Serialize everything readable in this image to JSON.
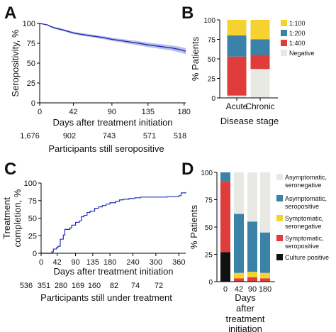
{
  "colors": {
    "blue": "#1f2fb5",
    "ci_band": "#a9afe6",
    "red": "#e03c3c",
    "steel": "#3a82a8",
    "yellow": "#f6d230",
    "gray": "#e9e9e4",
    "black": "#111111"
  },
  "chart_data": [
    {
      "panel": "A",
      "type": "line",
      "xlabel": "Days after treatment initiation",
      "ylabel": "Seropositivity, %",
      "xlim": [
        0,
        182
      ],
      "ylim": [
        0,
        100
      ],
      "xticks": [
        0,
        42,
        90,
        135,
        180
      ],
      "yticks": [
        0,
        25,
        50,
        75,
        100
      ],
      "series": [
        {
          "x": [
            0,
            5,
            10,
            14,
            20,
            28,
            35,
            42,
            50,
            60,
            70,
            80,
            90,
            100,
            110,
            120,
            135,
            150,
            165,
            175,
            180,
            182
          ],
          "y": [
            100,
            99,
            98,
            96,
            94,
            92,
            90,
            88,
            86.5,
            85,
            83.5,
            82,
            80,
            78.5,
            77,
            75.5,
            73,
            71,
            69,
            67,
            65.5,
            65
          ],
          "ci_halfwidth": [
            0,
            0.5,
            0.8,
            1,
            1.2,
            1.3,
            1.4,
            1.5,
            1.6,
            1.7,
            1.8,
            1.9,
            2.0,
            2.2,
            2.4,
            2.6,
            2.8,
            3.0,
            3.3,
            3.6,
            3.8,
            4.0
          ]
        }
      ],
      "risk_table": {
        "label": "Participants still seropositive",
        "values": [
          "1,676",
          "902",
          "743",
          "571",
          "518"
        ]
      }
    },
    {
      "panel": "B",
      "type": "bar",
      "stacked": true,
      "xlabel": "Disease stage",
      "ylabel": "% Patients",
      "ylim": [
        0,
        100
      ],
      "yticks": [
        0,
        25,
        50,
        75,
        100
      ],
      "categories": [
        "Acute",
        "Chronic"
      ],
      "legend_position": "top-right",
      "series": [
        {
          "name": "1:100",
          "values": [
            20,
            25
          ],
          "color": "#f6d230"
        },
        {
          "name": "1:200",
          "values": [
            27,
            20
          ],
          "color": "#3a82a8"
        },
        {
          "name": "1:400",
          "values": [
            50,
            18
          ],
          "color": "#e03c3c"
        },
        {
          "name": "Negative",
          "values": [
            3,
            37
          ],
          "color": "#e9e9e4"
        }
      ]
    },
    {
      "panel": "C",
      "type": "line",
      "xlabel": "Days after treatment initiation",
      "ylabel_lines": [
        "Treatment",
        "completion, %"
      ],
      "xlim": [
        0,
        378
      ],
      "ylim": [
        0,
        100
      ],
      "xticks": [
        0,
        42,
        90,
        135,
        180,
        240,
        300,
        360
      ],
      "yticks": [
        0,
        25,
        50,
        75,
        100
      ],
      "series": [
        {
          "x": [
            0,
            20,
            28,
            32,
            40,
            44,
            50,
            58,
            62,
            75,
            80,
            90,
            100,
            105,
            112,
            120,
            128,
            140,
            150,
            160,
            170,
            180,
            195,
            205,
            215,
            230,
            245,
            260,
            290,
            330,
            360,
            366,
            378
          ],
          "y": [
            0,
            0,
            2,
            6,
            8,
            10,
            20,
            26,
            34,
            36,
            40,
            44,
            46,
            52,
            54,
            58,
            60,
            64,
            66,
            68,
            70,
            72,
            74,
            76,
            77,
            78,
            79,
            80,
            80,
            80.5,
            82,
            86,
            87
          ]
        }
      ],
      "risk_table": {
        "label": "Participants still under treatment",
        "values": [
          "536",
          "351",
          "280",
          "169",
          "160",
          "82",
          "74",
          "72"
        ]
      }
    },
    {
      "panel": "D",
      "type": "bar",
      "stacked": true,
      "xlabel_lines": [
        "Days",
        "after",
        "treatment",
        "initiation"
      ],
      "ylabel": "% Patients",
      "ylim": [
        0,
        100
      ],
      "yticks": [
        0,
        25,
        50,
        75,
        100
      ],
      "categories": [
        "0",
        "42",
        "90",
        "180"
      ],
      "legend_position": "top-right",
      "series": [
        {
          "name": "Culture positive",
          "legend_lines": [
            "Culture positive"
          ],
          "values": [
            27,
            0,
            0,
            0
          ],
          "color": "#111111"
        },
        {
          "name": "Symptomatic, seropositive",
          "legend_lines": [
            "Symptomatic,",
            "seropositive"
          ],
          "values": [
            65,
            3,
            4,
            3
          ],
          "color": "#e03c3c"
        },
        {
          "name": "Symptomatic, seronegative",
          "legend_lines": [
            "Symptomatic,",
            "seronegative"
          ],
          "values": [
            0,
            5,
            5,
            5
          ],
          "color": "#f6d230"
        },
        {
          "name": "Asymptomatic, seropositive",
          "legend_lines": [
            "Asymptomatic,",
            "seropositive"
          ],
          "values": [
            8,
            54,
            46,
            37
          ],
          "color": "#3a82a8"
        },
        {
          "name": "Asymptomatic, seronegative",
          "legend_lines": [
            "Asymptomatic,",
            "seronegative"
          ],
          "values": [
            0,
            38,
            45,
            55
          ],
          "color": "#e9e9e4"
        }
      ]
    }
  ],
  "panel_labels": [
    "A",
    "B",
    "C",
    "D"
  ]
}
